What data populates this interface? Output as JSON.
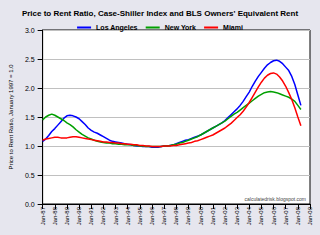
{
  "chart_data": {
    "type": "line",
    "title": "Price to Rent Ratio, Case-Shiller Index and BLS Owners' Equivalent Rent",
    "y_label": "Price to Rent Ratio, January 1997 = 1.0",
    "annotation": "calculatedrisk.blogspot.com",
    "legend": "top",
    "grid": true,
    "categories": [
      "Jan-87",
      null,
      null,
      null,
      "Jan-88",
      null,
      null,
      null,
      "Jan-89",
      null,
      null,
      null,
      "Jan-90",
      null,
      null,
      null,
      "Jan-91",
      null,
      null,
      null,
      "Jan-92",
      null,
      null,
      null,
      "Jan-93",
      null,
      null,
      null,
      "Jan-94",
      null,
      null,
      null,
      "Jan-95",
      null,
      null,
      null,
      "Jan-96",
      null,
      null,
      null,
      "Jan-97",
      null,
      null,
      null,
      "Jan-98",
      null,
      null,
      null,
      "Jan-99",
      null,
      null,
      null,
      "Jan-00",
      null,
      null,
      null,
      "Jan-01",
      null,
      null,
      null,
      "Jan-02",
      null,
      null,
      null,
      "Jan-03",
      null,
      null,
      null,
      "Jan-04",
      null,
      null,
      null,
      "Jan-05",
      null,
      null,
      null,
      "Jan-06",
      null,
      null,
      null,
      "Jan-07",
      null,
      null,
      null,
      "Jan-08",
      null,
      null,
      null,
      "Jan-09"
    ],
    "series": [
      {
        "name": "Los Angeles",
        "color": "#0000ff",
        "values": [
          1.08,
          1.12,
          1.18,
          1.25,
          1.3,
          1.36,
          1.42,
          1.48,
          1.52,
          1.53,
          1.52,
          1.5,
          1.47,
          1.42,
          1.37,
          1.31,
          1.27,
          1.24,
          1.22,
          1.19,
          1.16,
          1.13,
          1.1,
          1.08,
          1.07,
          1.06,
          1.05,
          1.04,
          1.03,
          1.02,
          1.01,
          1.0,
          1.0,
          0.99,
          0.99,
          0.99,
          0.98,
          0.98,
          0.98,
          0.99,
          1.0,
          1.0,
          1.01,
          1.02,
          1.04,
          1.06,
          1.08,
          1.1,
          1.11,
          1.13,
          1.15,
          1.17,
          1.19,
          1.22,
          1.25,
          1.28,
          1.31,
          1.34,
          1.37,
          1.4,
          1.44,
          1.49,
          1.54,
          1.59,
          1.64,
          1.7,
          1.77,
          1.85,
          1.93,
          2.03,
          2.12,
          2.2,
          2.27,
          2.34,
          2.4,
          2.44,
          2.47,
          2.48,
          2.46,
          2.42,
          2.36,
          2.3,
          2.2,
          2.06,
          1.88,
          1.7,
          null,
          null,
          null
        ]
      },
      {
        "name": "New York",
        "color": "#00a000",
        "values": [
          1.45,
          1.5,
          1.53,
          1.55,
          1.53,
          1.5,
          1.47,
          1.44,
          1.4,
          1.37,
          1.33,
          1.28,
          1.24,
          1.2,
          1.17,
          1.14,
          1.12,
          1.1,
          1.08,
          1.07,
          1.06,
          1.05,
          1.05,
          1.04,
          1.04,
          1.03,
          1.03,
          1.02,
          1.02,
          1.02,
          1.01,
          1.01,
          1.0,
          1.0,
          0.99,
          0.99,
          0.99,
          0.99,
          0.99,
          0.99,
          1.0,
          1.0,
          1.01,
          1.02,
          1.03,
          1.05,
          1.06,
          1.08,
          1.1,
          1.12,
          1.14,
          1.16,
          1.19,
          1.22,
          1.25,
          1.28,
          1.31,
          1.34,
          1.37,
          1.4,
          1.43,
          1.47,
          1.51,
          1.55,
          1.58,
          1.62,
          1.66,
          1.7,
          1.74,
          1.78,
          1.82,
          1.86,
          1.89,
          1.92,
          1.93,
          1.94,
          1.93,
          1.92,
          1.9,
          1.88,
          1.86,
          1.84,
          1.81,
          1.77,
          1.7,
          1.63,
          null,
          null,
          null
        ]
      },
      {
        "name": "Miami",
        "color": "#ff0000",
        "values": [
          1.1,
          1.12,
          1.13,
          1.14,
          1.15,
          1.15,
          1.14,
          1.14,
          1.14,
          1.15,
          1.16,
          1.16,
          1.15,
          1.14,
          1.13,
          1.12,
          1.11,
          1.1,
          1.09,
          1.08,
          1.07,
          1.07,
          1.06,
          1.06,
          1.05,
          1.05,
          1.04,
          1.04,
          1.03,
          1.03,
          1.02,
          1.02,
          1.01,
          1.01,
          1.0,
          1.0,
          0.99,
          0.99,
          0.99,
          0.99,
          1.0,
          1.0,
          1.0,
          1.01,
          1.01,
          1.02,
          1.03,
          1.04,
          1.05,
          1.06,
          1.08,
          1.09,
          1.11,
          1.13,
          1.15,
          1.17,
          1.19,
          1.22,
          1.25,
          1.28,
          1.31,
          1.35,
          1.39,
          1.44,
          1.49,
          1.54,
          1.6,
          1.67,
          1.75,
          1.84,
          1.93,
          2.02,
          2.1,
          2.17,
          2.22,
          2.25,
          2.26,
          2.24,
          2.19,
          2.12,
          2.03,
          1.92,
          1.8,
          1.66,
          1.5,
          1.35,
          null,
          null,
          null
        ]
      }
    ],
    "ylim": [
      0,
      3
    ],
    "yticks": [
      {
        "value": 0,
        "label": "0.0"
      },
      {
        "value": 0.5,
        "label": "0.5"
      },
      {
        "value": 1,
        "label": "1.0"
      },
      {
        "value": 1.5,
        "label": "1.5"
      },
      {
        "value": 2,
        "label": "2.0"
      },
      {
        "value": 2.5,
        "label": "2.5"
      },
      {
        "value": 3,
        "label": "3.0"
      }
    ]
  }
}
